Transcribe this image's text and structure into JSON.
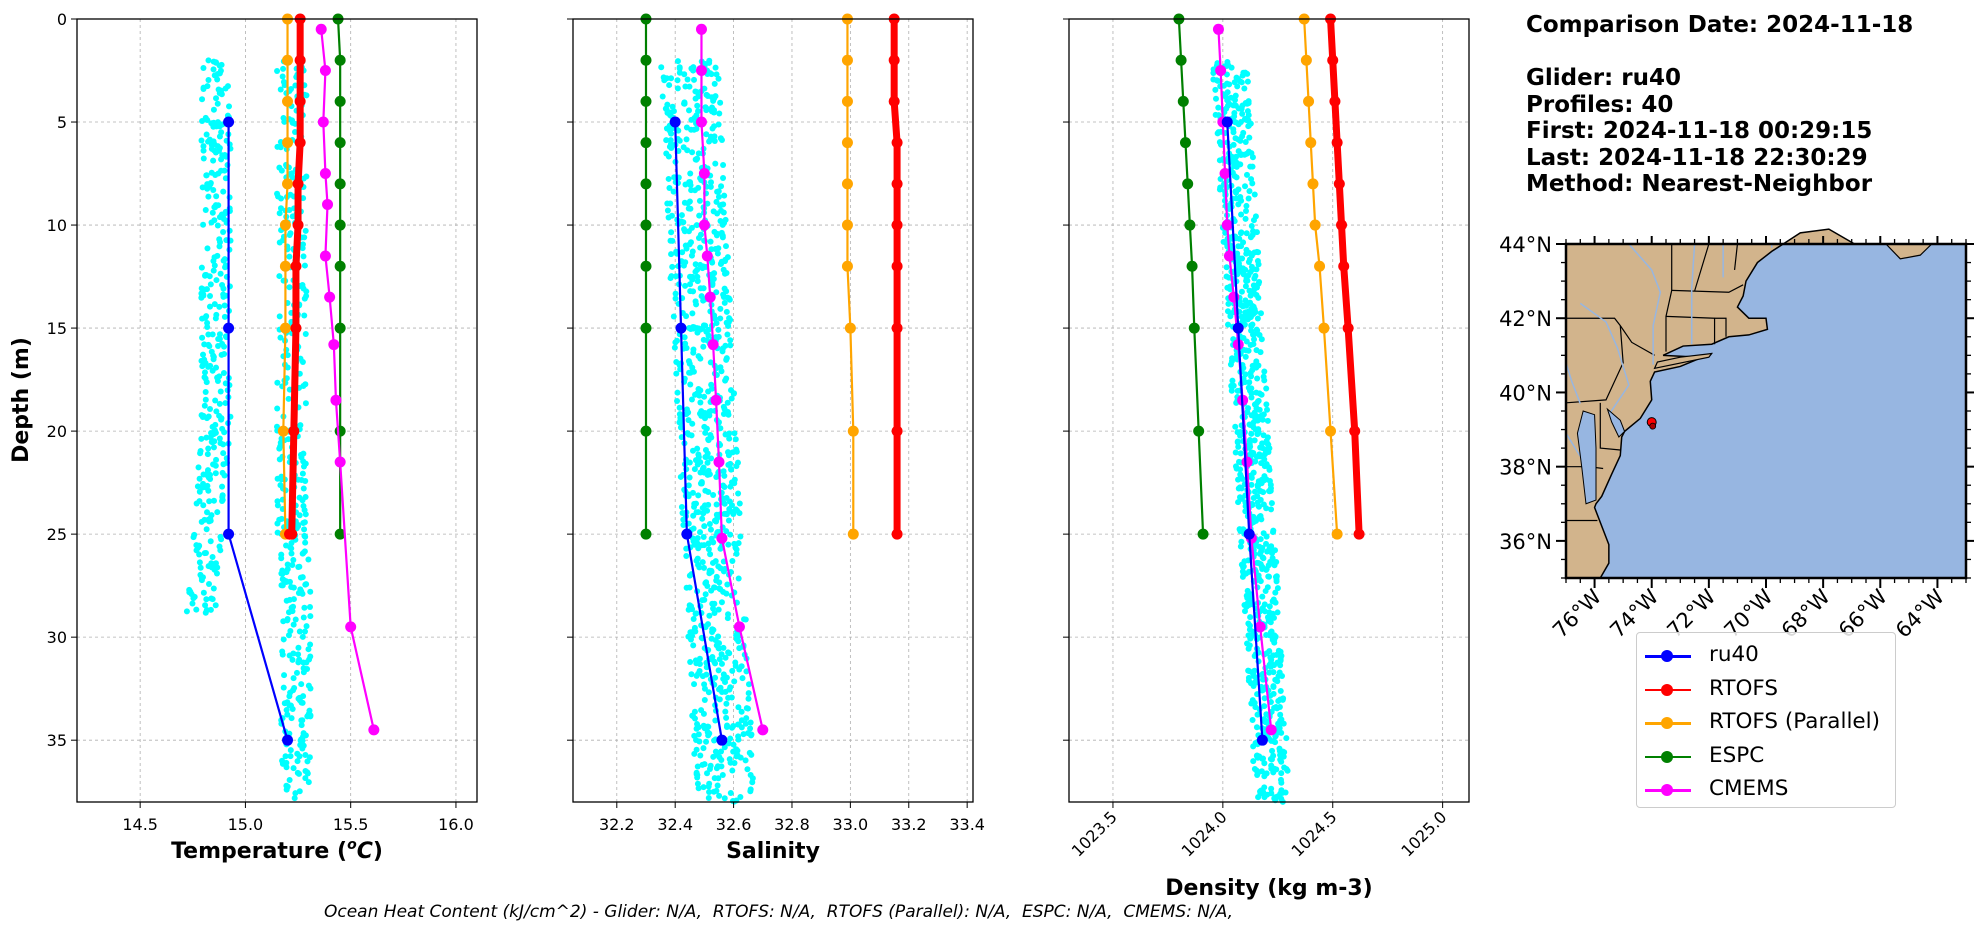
{
  "info": {
    "comparison_date": "Comparison Date: 2024-11-18",
    "glider": "Glider: ru40",
    "profiles": "Profiles: 40",
    "first": "First: 2024-11-18 00:29:15",
    "last": "Last: 2024-11-18 22:30:29",
    "method": "Method: Nearest-Neighbor"
  },
  "footer": "Ocean Heat Content (kJ/cm^2) - Glider: N/A,  RTOFS: N/A,  RTOFS (Parallel): N/A,  ESPC: N/A,  CMEMS: N/A,",
  "colors": {
    "ru40": "#0000ff",
    "RTOFS": "#ff0000",
    "RTOFS (Parallel)": "#ffa500",
    "ESPC": "#008000",
    "CMEMS": "#ff00ff",
    "glider_points": "#00ffff",
    "land": "#d2b48c",
    "ocean": "#97b6e1",
    "grid": "#b0b0b0"
  },
  "legend": [
    "ru40",
    "RTOFS",
    "RTOFS (Parallel)",
    "ESPC",
    "CMEMS"
  ],
  "chart_data": [
    {
      "type": "line",
      "xlabel": "Temperature (°C)",
      "ylabel": "Depth (m)",
      "xlim": [
        14.2,
        16.1
      ],
      "ylim": [
        38,
        0
      ],
      "xticks": [
        "14.5",
        "15.0",
        "15.5",
        "16.0"
      ],
      "xtick_values": [
        14.5,
        15.0,
        15.5,
        16.0
      ],
      "yticks": [
        "0",
        "5",
        "10",
        "15",
        "20",
        "25",
        "30",
        "35"
      ],
      "ytick_values": [
        0,
        5,
        10,
        15,
        20,
        25,
        30,
        35
      ],
      "grid": true,
      "glider_scatter": {
        "x_mean": [
          [
            2,
            14.85
          ],
          [
            10,
            14.85
          ],
          [
            20,
            14.85
          ],
          [
            25,
            14.8
          ],
          [
            28,
            14.75
          ]
        ],
        "band_right": [
          [
            2,
            15.25
          ],
          [
            38,
            15.25
          ]
        ]
      },
      "series": [
        {
          "name": "ru40",
          "x": [
            14.92,
            14.92,
            14.92,
            15.2
          ],
          "y": [
            5,
            15,
            25,
            35
          ]
        },
        {
          "name": "RTOFS",
          "x": [
            15.26,
            15.26,
            15.26,
            15.26,
            15.25,
            15.25,
            15.24,
            15.24,
            15.23,
            15.22,
            15.22,
            15.21,
            15.21
          ],
          "y": [
            0,
            2,
            4,
            6,
            8,
            10,
            12,
            15,
            20,
            25,
            25,
            25,
            25
          ]
        },
        {
          "name": "RTOFS (Parallel)",
          "x": [
            15.2,
            15.2,
            15.2,
            15.2,
            15.2,
            15.19,
            15.19,
            15.19,
            15.18,
            15.19
          ],
          "y": [
            0,
            2,
            4,
            6,
            8,
            10,
            12,
            15,
            20,
            25
          ]
        },
        {
          "name": "ESPC",
          "x": [
            15.44,
            15.45,
            15.45,
            15.45,
            15.45,
            15.45,
            15.45,
            15.45,
            15.45,
            15.45
          ],
          "y": [
            0,
            2,
            4,
            6,
            8,
            10,
            12,
            15,
            20,
            25
          ]
        },
        {
          "name": "CMEMS",
          "x": [
            15.36,
            15.38,
            15.37,
            15.38,
            15.39,
            15.38,
            15.4,
            15.42,
            15.43,
            15.45,
            15.5,
            15.61
          ],
          "y": [
            0.5,
            2.5,
            5,
            7.5,
            9,
            11.5,
            13.5,
            15.8,
            18.5,
            21.5,
            29.5,
            34.5
          ]
        }
      ]
    },
    {
      "type": "line",
      "xlabel": "Salinity",
      "ylabel": "",
      "xlim": [
        32.05,
        33.42
      ],
      "ylim": [
        38,
        0
      ],
      "xticks": [
        "32.2",
        "32.4",
        "32.6",
        "32.8",
        "33.0",
        "33.2",
        "33.4"
      ],
      "xtick_values": [
        32.2,
        32.4,
        32.6,
        32.8,
        33.0,
        33.2,
        33.4
      ],
      "grid": true,
      "series": [
        {
          "name": "ru40",
          "x": [
            32.4,
            32.42,
            32.44,
            32.56
          ],
          "y": [
            5,
            15,
            25,
            35
          ]
        },
        {
          "name": "RTOFS",
          "x": [
            33.15,
            33.15,
            33.15,
            33.16,
            33.16,
            33.16,
            33.16,
            33.16,
            33.16,
            33.16
          ],
          "y": [
            0,
            2,
            4,
            6,
            8,
            10,
            12,
            15,
            20,
            25
          ]
        },
        {
          "name": "RTOFS (Parallel)",
          "x": [
            32.99,
            32.99,
            32.99,
            32.99,
            32.99,
            32.99,
            32.99,
            33.0,
            33.01,
            33.01
          ],
          "y": [
            0,
            2,
            4,
            6,
            8,
            10,
            12,
            15,
            20,
            25
          ]
        },
        {
          "name": "ESPC",
          "x": [
            32.3,
            32.3,
            32.3,
            32.3,
            32.3,
            32.3,
            32.3,
            32.3,
            32.3,
            32.3
          ],
          "y": [
            0,
            2,
            4,
            6,
            8,
            10,
            12,
            15,
            20,
            25
          ]
        },
        {
          "name": "CMEMS",
          "x": [
            32.49,
            32.49,
            32.49,
            32.5,
            32.5,
            32.51,
            32.52,
            32.53,
            32.54,
            32.55,
            32.56,
            32.62,
            32.7
          ],
          "y": [
            0.5,
            2.5,
            5,
            7.5,
            10,
            11.5,
            13.5,
            15.8,
            18.5,
            21.5,
            25.2,
            29.5,
            34.5
          ]
        }
      ]
    },
    {
      "type": "line",
      "xlabel": "Density (kg m-3)",
      "ylabel": "",
      "xlim": [
        1023.3,
        1025.12
      ],
      "ylim": [
        38,
        0
      ],
      "xticks": [
        "1023.5",
        "1024.0",
        "1024.5",
        "1025.0"
      ],
      "xtick_values": [
        1023.5,
        1024.0,
        1024.5,
        1025.0
      ],
      "grid": true,
      "series": [
        {
          "name": "ru40",
          "x": [
            1024.02,
            1024.07,
            1024.12,
            1024.18
          ],
          "y": [
            5,
            15,
            25,
            35
          ]
        },
        {
          "name": "RTOFS",
          "x": [
            1024.49,
            1024.5,
            1024.51,
            1024.52,
            1024.53,
            1024.54,
            1024.55,
            1024.57,
            1024.6,
            1024.62
          ],
          "y": [
            0,
            2,
            4,
            6,
            8,
            10,
            12,
            15,
            20,
            25
          ]
        },
        {
          "name": "RTOFS (Parallel)",
          "x": [
            1024.37,
            1024.38,
            1024.39,
            1024.4,
            1024.41,
            1024.42,
            1024.44,
            1024.46,
            1024.49,
            1024.52
          ],
          "y": [
            0,
            2,
            4,
            6,
            8,
            10,
            12,
            15,
            20,
            25
          ]
        },
        {
          "name": "ESPC",
          "x": [
            1023.8,
            1023.81,
            1023.82,
            1023.83,
            1023.84,
            1023.85,
            1023.86,
            1023.87,
            1023.89,
            1023.91
          ],
          "y": [
            0,
            2,
            4,
            6,
            8,
            10,
            12,
            15,
            20,
            25
          ]
        },
        {
          "name": "CMEMS",
          "x": [
            1023.98,
            1023.99,
            1024.0,
            1024.01,
            1024.02,
            1024.03,
            1024.05,
            1024.07,
            1024.09,
            1024.11,
            1024.13,
            1024.17,
            1024.22
          ],
          "y": [
            0.5,
            2.5,
            5,
            7.5,
            10,
            11.5,
            13.5,
            15.8,
            18.5,
            21.5,
            25.2,
            29.5,
            34.5
          ]
        }
      ]
    },
    {
      "type": "map",
      "lat_ticks": [
        "44°N",
        "42°N",
        "40°N",
        "38°N",
        "36°N"
      ],
      "lat_values": [
        44,
        42,
        40,
        38,
        36
      ],
      "lon_ticks": [
        "76°W",
        "74°W",
        "72°W",
        "70°W",
        "68°W",
        "66°W",
        "64°W"
      ],
      "lon_values": [
        -76,
        -74,
        -72,
        -70,
        -68,
        -66,
        -64
      ],
      "lat_range": [
        35,
        44
      ],
      "lon_range": [
        -77,
        -63
      ],
      "marker": {
        "lat": 39.2,
        "lon": -74.0
      }
    }
  ]
}
